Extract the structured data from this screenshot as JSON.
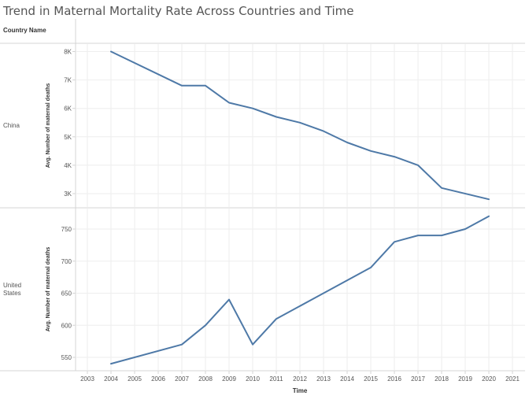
{
  "title": "Trend in Maternal Mortality Rate Across Countries and Time",
  "row_header": "Country Name",
  "colors": {
    "line": "#4e79a7",
    "grid": "#eeeeee",
    "axis": "#d4d4d4",
    "text": "#555555"
  },
  "chart_data": {
    "type": "line",
    "title": "Trend in Maternal Mortality Rate Across Countries and Time",
    "xlabel": "Time",
    "xticks": [
      "2003",
      "2004",
      "2005",
      "2006",
      "2007",
      "2008",
      "2009",
      "2010",
      "2011",
      "2012",
      "2013",
      "2014",
      "2015",
      "2016",
      "2017",
      "2018",
      "2019",
      "2020",
      "2021"
    ],
    "xlim": [
      2003,
      2021
    ],
    "panels": [
      {
        "row": "China",
        "ylabel": "Avg. Number of maternal deaths",
        "ylim": [
          2700,
          8300
        ],
        "yticks": [
          3000,
          4000,
          5000,
          6000,
          7000,
          8000
        ],
        "ytick_labels": [
          "3K",
          "4K",
          "5K",
          "6K",
          "7K",
          "8K"
        ],
        "x": [
          2004,
          2007,
          2008,
          2009,
          2010,
          2011,
          2012,
          2013,
          2014,
          2015,
          2016,
          2017,
          2018,
          2020
        ],
        "y": [
          8000,
          6800,
          6800,
          6200,
          6000,
          5700,
          5500,
          5200,
          4800,
          4500,
          4300,
          4000,
          3200,
          2800
        ]
      },
      {
        "row": "United States",
        "ylabel": "Avg. Number of maternal deaths",
        "ylim": [
          530,
          775
        ],
        "yticks": [
          550,
          600,
          650,
          700,
          750
        ],
        "ytick_labels": [
          "550",
          "600",
          "650",
          "700",
          "750"
        ],
        "x": [
          2004,
          2007,
          2008,
          2009,
          2010,
          2011,
          2015,
          2016,
          2017,
          2018,
          2019,
          2020
        ],
        "y": [
          540,
          570,
          600,
          640,
          570,
          610,
          690,
          730,
          740,
          740,
          750,
          770
        ]
      }
    ]
  }
}
